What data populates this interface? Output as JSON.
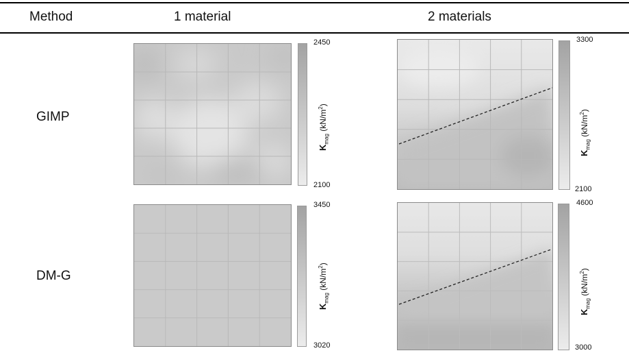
{
  "table": {
    "headers": [
      "Method",
      "1 material",
      "2 materials"
    ],
    "rows": [
      {
        "method": "GIMP",
        "one_material": {
          "colorbar_max": "2450",
          "colorbar_min": "2100"
        },
        "two_materials": {
          "colorbar_max": "3300",
          "colorbar_min": "2100"
        }
      },
      {
        "method": "DM-G",
        "one_material": {
          "colorbar_max": "3450",
          "colorbar_min": "3020"
        },
        "two_materials": {
          "colorbar_max": "4600",
          "colorbar_min": "3000"
        }
      }
    ]
  },
  "colorbar_label": {
    "symbol": "K",
    "subscript": "mag",
    "unit": "(kN/m",
    "unit_power": "2",
    "unit_close": ")"
  },
  "colors": {
    "cbar_high": "#a3a3a3",
    "cbar_low": "#ececec",
    "grid": "#b8b8b8"
  }
}
